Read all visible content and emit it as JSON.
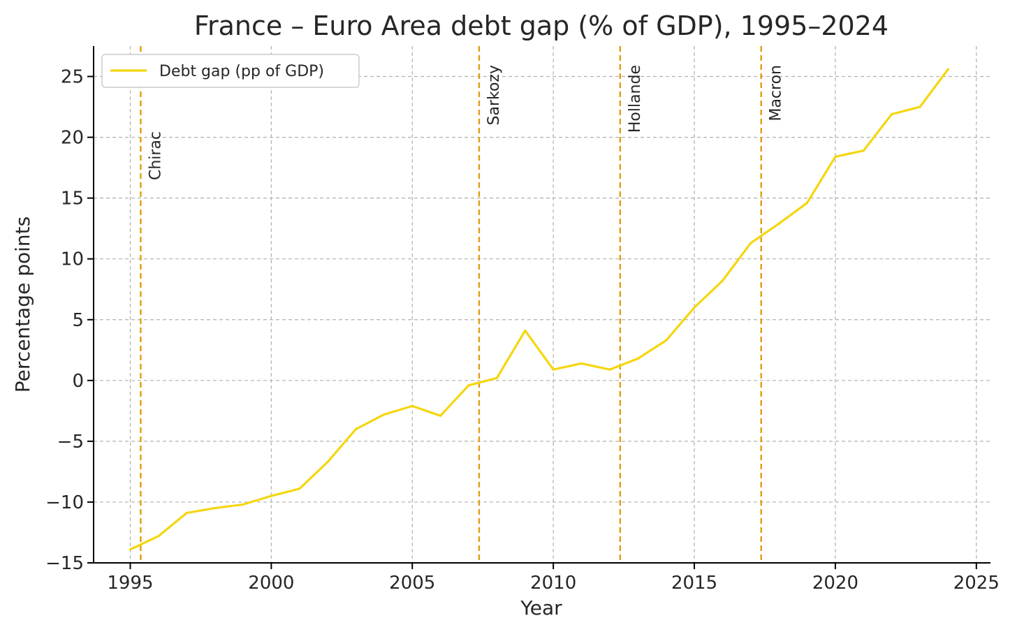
{
  "chart_data": {
    "type": "line",
    "title": "France – Euro Area debt gap (% of GDP), 1995–2024",
    "xlabel": "Year",
    "ylabel": "Percentage points",
    "xlim": [
      1993.7,
      2025.5
    ],
    "ylim": [
      -15,
      27.5
    ],
    "xticks": [
      1995,
      2000,
      2005,
      2010,
      2015,
      2020,
      2025
    ],
    "yticks": [
      -15,
      -10,
      -5,
      0,
      5,
      10,
      15,
      20,
      25
    ],
    "ytick_labels": [
      "−15",
      "−10",
      "−5",
      "0",
      "5",
      "10",
      "15",
      "20",
      "25"
    ],
    "grid": true,
    "legend_position": "top-left",
    "series": [
      {
        "name": "Debt gap (pp of GDP)",
        "color": "#f5d60f",
        "x": [
          1995,
          1996,
          1997,
          1998,
          1999,
          2000,
          2001,
          2002,
          2003,
          2004,
          2005,
          2006,
          2007,
          2008,
          2009,
          2010,
          2011,
          2012,
          2013,
          2014,
          2015,
          2016,
          2017,
          2018,
          2019,
          2020,
          2021,
          2022,
          2023,
          2024
        ],
        "values": [
          -13.9,
          -12.8,
          -10.9,
          -10.5,
          -10.2,
          -9.5,
          -8.9,
          -6.7,
          -4.0,
          -2.8,
          -2.1,
          -2.9,
          -0.4,
          0.2,
          4.1,
          0.9,
          1.4,
          0.9,
          1.8,
          3.3,
          6.0,
          8.2,
          11.3,
          12.9,
          14.6,
          18.4,
          18.9,
          21.9,
          22.5,
          25.6
        ]
      }
    ],
    "annotations": [
      {
        "label": "Chirac",
        "x": 1995.37,
        "color": "#e39c0e"
      },
      {
        "label": "Sarkozy",
        "x": 2007.37,
        "color": "#e39c0e"
      },
      {
        "label": "Hollande",
        "x": 2012.37,
        "color": "#e39c0e"
      },
      {
        "label": "Macron",
        "x": 2017.37,
        "color": "#e39c0e"
      }
    ]
  }
}
